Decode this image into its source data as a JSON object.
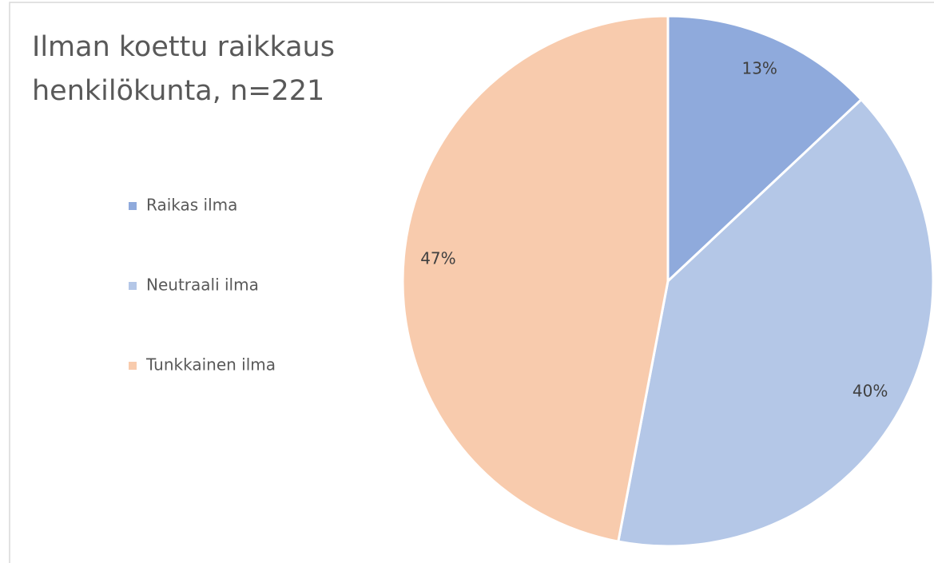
{
  "chart_data": {
    "type": "pie",
    "title": [
      "Ilman koettu raikkaus",
      "henkilökunta, n=221"
    ],
    "categories": [
      "Raikas ilma",
      "Neutraali ilma",
      "Tunkkainen ilma"
    ],
    "values": [
      13,
      40,
      47
    ],
    "value_labels": [
      "13%",
      "40%",
      "47%"
    ],
    "colors": [
      "#8faadc",
      "#b4c7e7",
      "#f8cbad"
    ],
    "legend": "left"
  }
}
